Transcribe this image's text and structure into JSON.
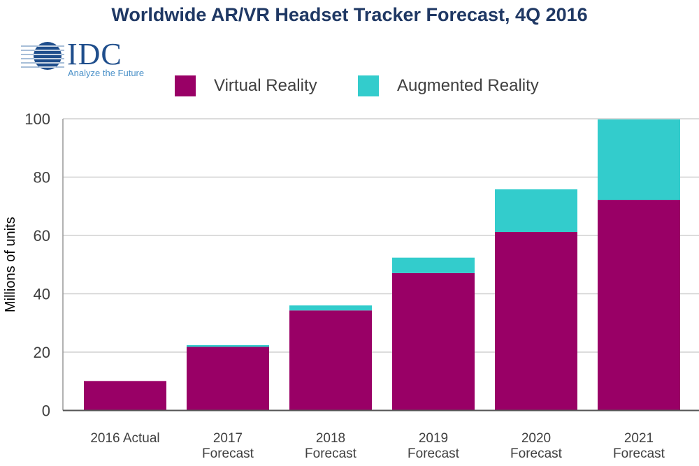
{
  "logo": {
    "text": "IDC",
    "tagline": "Analyze the Future"
  },
  "chart_data": {
    "type": "bar",
    "stacked": true,
    "title": "Worldwide AR/VR Headset Tracker Forecast, 4Q 2016",
    "xlabel": "",
    "ylabel": "Millions of units",
    "ylim": [
      0,
      100
    ],
    "yticks": [
      0,
      20,
      40,
      60,
      80,
      100
    ],
    "grid": true,
    "legend": "top",
    "categories": [
      [
        "2016 Actual"
      ],
      [
        "2017",
        "Forecast"
      ],
      [
        "2018",
        "Forecast"
      ],
      [
        "2019",
        "Forecast"
      ],
      [
        "2020",
        "Forecast"
      ],
      [
        "2021",
        "Forecast"
      ]
    ],
    "series": [
      {
        "name": "Virtual Reality",
        "color": "#990066",
        "values": [
          10.1,
          21.8,
          34.3,
          47.1,
          61.2,
          72.2
        ]
      },
      {
        "name": "Augmented Reality",
        "color": "#33CCCC",
        "values": [
          0,
          0.6,
          1.7,
          5.3,
          14.6,
          27.6
        ]
      }
    ]
  }
}
